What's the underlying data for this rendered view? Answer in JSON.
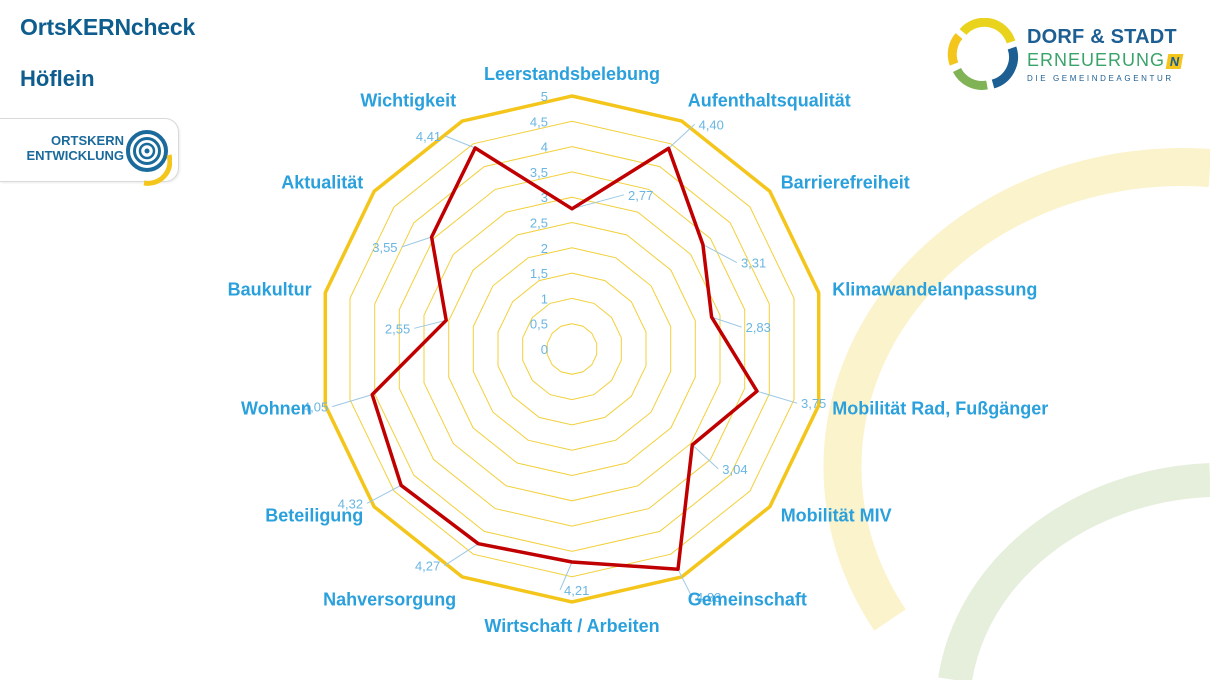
{
  "header": {
    "title": "OrtsKERNcheck",
    "subtitle": "Höflein"
  },
  "logo_left": {
    "line1": "ORTSKERN",
    "line2": "ENTWICKLUNG"
  },
  "logo_right": {
    "line1": "DORF & STADT",
    "line2": "ERNEUERUNG",
    "badge": "N",
    "line3": "DIE GEMEINDEAGENTUR"
  },
  "colors": {
    "series": "#c00000",
    "frame": "#f4c51a",
    "grid": "#f2d03b",
    "label": "#2aa0dc",
    "leader": "#9dc8e4",
    "tick": "#6ab6e2"
  },
  "chart_data": {
    "type": "radar",
    "title": "",
    "rmax": 5,
    "ticks": [
      "0",
      "0,5",
      "1",
      "1,5",
      "2",
      "2,5",
      "3",
      "3,5",
      "4",
      "4,5",
      "5"
    ],
    "categories": [
      "Leerstandsbelebung",
      "Aufenthaltsqualität",
      "Barrierefreiheit",
      "Klimawandelanpassung",
      "Mobilität Rad, Fußgänger",
      "Mobilität MIV",
      "Gemeinschaft",
      "Wirtschaft / Arbeiten",
      "Nahversorgung",
      "Beteiligung",
      "Wohnen",
      "Baukultur",
      "Aktualität",
      "Wichtigkeit"
    ],
    "values": [
      2.77,
      4.4,
      3.31,
      2.83,
      3.75,
      3.04,
      4.83,
      4.21,
      4.27,
      4.32,
      4.05,
      2.55,
      3.55,
      4.41
    ],
    "value_labels": [
      "2,77",
      "4,40",
      "3,31",
      "2,83",
      "3,75",
      "3,04",
      "4,83",
      "4,21",
      "4,27",
      "4,32",
      "4,05",
      "2,55",
      "3,55",
      "4,41"
    ]
  }
}
